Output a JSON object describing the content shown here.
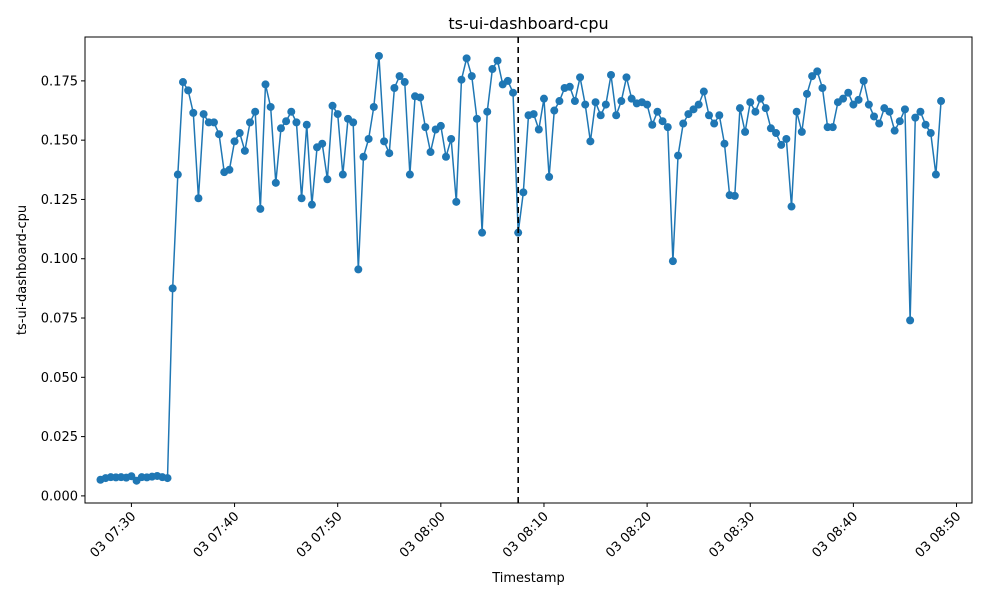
{
  "chart_data": {
    "type": "line",
    "title": "ts-ui-dashboard-cpu",
    "xlabel": "Timestamp",
    "ylabel": "ts-ui-dashboard-cpu",
    "x_start": "03 07:27",
    "x_step_minutes": 0.5,
    "xlim": [
      "03 07:25:30",
      "03 08:51:30"
    ],
    "ylim": [
      -0.003,
      0.1935
    ],
    "x_ticks": [
      "03 07:30",
      "03 07:40",
      "03 07:50",
      "03 08:00",
      "03 08:10",
      "03 08:20",
      "03 08:30",
      "03 08:40",
      "03 08:50"
    ],
    "y_ticks": [
      "0.000",
      "0.025",
      "0.050",
      "0.075",
      "0.100",
      "0.125",
      "0.150",
      "0.175"
    ],
    "vline": "03 08:07:30",
    "grid": false,
    "marker": "circle",
    "color": "#1f77b4",
    "vline_color": "#000000",
    "series": [
      {
        "values": [
          0.0068,
          0.0075,
          0.0079,
          0.0078,
          0.0079,
          0.0077,
          0.0083,
          0.0064,
          0.0079,
          0.0078,
          0.0081,
          0.0084,
          0.0079,
          0.0075,
          0.0875,
          0.1355,
          0.1745,
          0.171,
          0.1615,
          0.1255,
          0.161,
          0.1575,
          0.1575,
          0.1525,
          0.1365,
          0.1375,
          0.1495,
          0.153,
          0.1455,
          0.1575,
          0.162,
          0.121,
          0.1735,
          0.164,
          0.132,
          0.155,
          0.158,
          0.162,
          0.1575,
          0.1255,
          0.1565,
          0.1228,
          0.147,
          0.1485,
          0.1335,
          0.1645,
          0.161,
          0.1355,
          0.159,
          0.1575,
          0.0955,
          0.143,
          0.1505,
          0.164,
          0.1855,
          0.1495,
          0.1445,
          0.172,
          0.177,
          0.1745,
          0.1355,
          0.1685,
          0.168,
          0.1555,
          0.145,
          0.1545,
          0.156,
          0.143,
          0.1505,
          0.124,
          0.1755,
          0.1845,
          0.177,
          0.159,
          0.111,
          0.162,
          0.18,
          0.1835,
          0.1735,
          0.175,
          0.17,
          0.111,
          0.128,
          0.1605,
          0.161,
          0.1545,
          0.1675,
          0.1345,
          0.1625,
          0.1665,
          0.172,
          0.1725,
          0.1665,
          0.1765,
          0.165,
          0.1495,
          0.166,
          0.1605,
          0.165,
          0.1775,
          0.1605,
          0.1665,
          0.1765,
          0.1675,
          0.1655,
          0.166,
          0.165,
          0.1565,
          0.162,
          0.158,
          0.1555,
          0.099,
          0.1435,
          0.157,
          0.161,
          0.163,
          0.165,
          0.1705,
          0.1605,
          0.157,
          0.1605,
          0.1485,
          0.1268,
          0.1265,
          0.1635,
          0.1535,
          0.166,
          0.162,
          0.1675,
          0.1635,
          0.155,
          0.153,
          0.148,
          0.1505,
          0.122,
          0.162,
          0.1535,
          0.1695,
          0.177,
          0.179,
          0.172,
          0.1555,
          0.1555,
          0.166,
          0.1675,
          0.17,
          0.165,
          0.167,
          0.175,
          0.165,
          0.16,
          0.157,
          0.1635,
          0.162,
          0.154,
          0.158,
          0.163,
          0.074,
          0.1595,
          0.162,
          0.1565,
          0.153,
          0.1355,
          0.1665
        ]
      }
    ]
  }
}
